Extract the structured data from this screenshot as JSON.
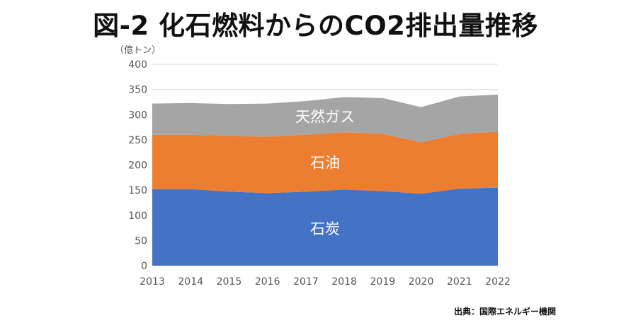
{
  "title": "図-2 化石燃料からのCO2排出量推移",
  "source": "出典：国際エネルギー機関",
  "colors": {
    "coal": "#4472c4",
    "oil": "#ed7d31",
    "gas": "#a5a5a5",
    "grid": "#d9d9d9"
  },
  "chart_data": {
    "type": "area",
    "stacked": true,
    "unit_label": "（億トン）",
    "x": [
      "2013",
      "2014",
      "2015",
      "2016",
      "2017",
      "2018",
      "2019",
      "2020",
      "2021",
      "2022"
    ],
    "ylim": [
      0,
      400
    ],
    "yticks": [
      0,
      50,
      100,
      150,
      200,
      250,
      300,
      350,
      400
    ],
    "grid": true,
    "legend": "none",
    "series": [
      {
        "name": "石炭",
        "color": "#4472c4",
        "values": [
          152,
          152,
          147,
          144,
          147,
          151,
          148,
          143,
          153,
          155
        ]
      },
      {
        "name": "石油",
        "color": "#ed7d31",
        "values": [
          108,
          108,
          111,
          112,
          113,
          114,
          114,
          102,
          109,
          111
        ]
      },
      {
        "name": "天然ガス",
        "color": "#a5a5a5",
        "values": [
          62,
          63,
          63,
          66,
          67,
          70,
          71,
          70,
          74,
          74
        ]
      }
    ]
  }
}
